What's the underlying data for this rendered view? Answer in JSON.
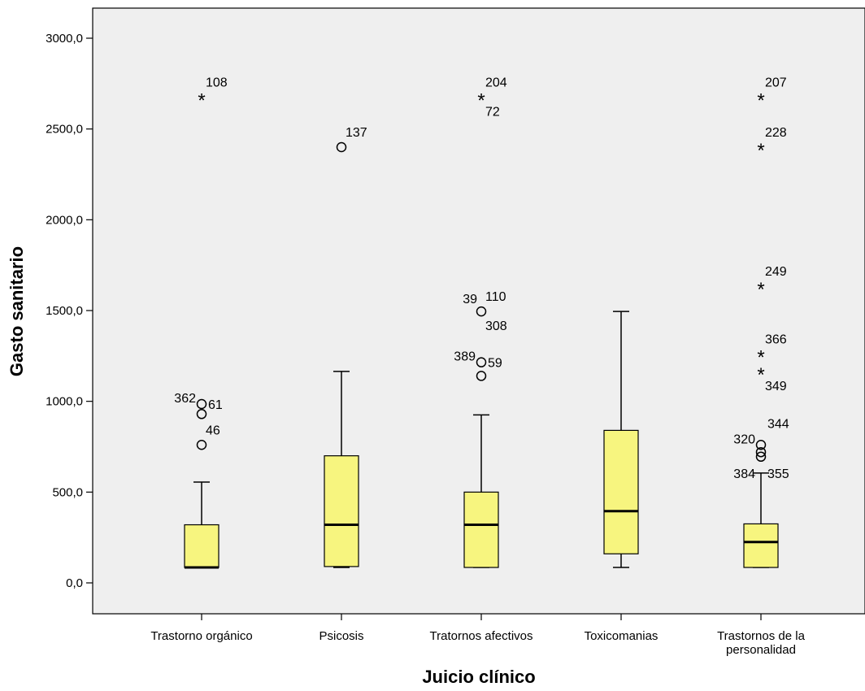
{
  "chart_data": {
    "type": "boxplot",
    "xlabel": "Juicio clínico",
    "ylabel": "Gasto sanitario",
    "ylim": [
      -160,
      3200
    ],
    "yticks": [
      "0,0",
      "500,0",
      "1000,0",
      "1500,0",
      "2000,0",
      "2500,0",
      "3000,0"
    ],
    "ytick_values": [
      0,
      500,
      1000,
      1500,
      2000,
      2500,
      3000
    ],
    "grid": false,
    "plot_background": "#efefef",
    "box_color": "#f7f57f",
    "categories": [
      {
        "label_lines": [
          "Trastorno orgánico"
        ],
        "whisker_low": 85,
        "q1": 85,
        "median": 85,
        "q3": 320,
        "whisker_high": 555,
        "outliers": [
          {
            "value": 985,
            "marker": "circle",
            "label": "362",
            "label_side": "left"
          },
          {
            "value": 985,
            "marker": "none",
            "label": "61",
            "label_side": "right"
          },
          {
            "value": 930,
            "marker": "circle",
            "label": "",
            "label_side": "right"
          },
          {
            "value": 760,
            "marker": "circle",
            "label": "46",
            "label_side": "right-up"
          },
          {
            "value": 2675,
            "marker": "star",
            "label": "108",
            "label_side": "right-up"
          }
        ]
      },
      {
        "label_lines": [
          "Psicosis"
        ],
        "whisker_low": 85,
        "q1": 90,
        "median": 320,
        "q3": 700,
        "whisker_high": 1165,
        "outliers": [
          {
            "value": 2400,
            "marker": "circle",
            "label": "137",
            "label_side": "right-up"
          }
        ]
      },
      {
        "label_lines": [
          "Tratornos afectivos"
        ],
        "whisker_low": 85,
        "q1": 85,
        "median": 320,
        "q3": 500,
        "whisker_high": 925,
        "outliers": [
          {
            "value": 1140,
            "marker": "circle",
            "label": "",
            "label_side": "right"
          },
          {
            "value": 1215,
            "marker": "circle",
            "label": "389",
            "label_side": "left"
          },
          {
            "value": 1215,
            "marker": "none",
            "label": "59",
            "label_side": "right"
          },
          {
            "value": 1495,
            "marker": "circle",
            "label": "39",
            "label_side": "left-up"
          },
          {
            "value": 1495,
            "marker": "none",
            "label": "110",
            "label_side": "right-up"
          },
          {
            "value": 1495,
            "marker": "none",
            "label": "308",
            "label_side": "right-down"
          },
          {
            "value": 2675,
            "marker": "star",
            "label": "204",
            "label_side": "right-up"
          },
          {
            "value": 2675,
            "marker": "none",
            "label": "72",
            "label_side": "right-down"
          }
        ]
      },
      {
        "label_lines": [
          "Toxicomanias"
        ],
        "whisker_low": 85,
        "q1": 160,
        "median": 395,
        "q3": 840,
        "whisker_high": 1495,
        "outliers": []
      },
      {
        "label_lines": [
          "Trastornos de la",
          "personalidad"
        ],
        "whisker_low": 85,
        "q1": 85,
        "median": 225,
        "q3": 325,
        "whisker_high": 605,
        "outliers": [
          {
            "value": 695,
            "marker": "circle",
            "label": "",
            "label_side": "right"
          },
          {
            "value": 720,
            "marker": "circle",
            "label": "",
            "label_side": "right"
          },
          {
            "value": 760,
            "marker": "circle",
            "label": "320",
            "label_side": "left"
          },
          {
            "value": 880,
            "marker": "none",
            "label": "344",
            "label_side": "right"
          },
          {
            "value": 605,
            "marker": "none",
            "label": "384",
            "label_side": "left-down"
          },
          {
            "value": 605,
            "marker": "none",
            "label": "355",
            "label_side": "right"
          },
          {
            "value": 1165,
            "marker": "star",
            "label": "349",
            "label_side": "right-down"
          },
          {
            "value": 1260,
            "marker": "star",
            "label": "366",
            "label_side": "right-up"
          },
          {
            "value": 1635,
            "marker": "star",
            "label": "249",
            "label_side": "right-up"
          },
          {
            "value": 2400,
            "marker": "star",
            "label": "228",
            "label_side": "right-up"
          },
          {
            "value": 2675,
            "marker": "star",
            "label": "207",
            "label_side": "right-up"
          }
        ]
      }
    ]
  }
}
